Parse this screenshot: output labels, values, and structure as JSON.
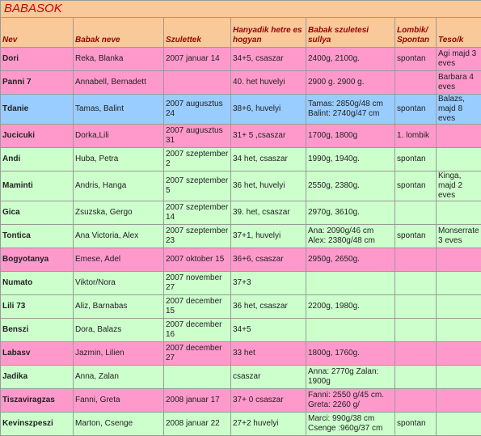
{
  "title": "BABASOK",
  "colors": {
    "header_bg": "#f9c99a",
    "pink": "#ff99cc",
    "green": "#ccffcc",
    "blue": "#99ccff",
    "title_red": "#cc0000",
    "header_text": "#990000"
  },
  "headers": {
    "nev": "Nev",
    "babak_neve": "Babak neve",
    "szulettek": "Szulettek",
    "hanyadik": "Hanyadik hetre es hogyan",
    "suly": "Babak szuletesi sullya",
    "lombik": "Lombik/ Spontan",
    "teso": "Teso/k"
  },
  "rows": [
    {
      "color": "pink",
      "nev": "Dori",
      "babak": "Reka, Blanka",
      "szulettek": "2007 januar 14",
      "het": "34+5, csaszar",
      "suly": "2400g, 2100g.",
      "lombik": "spontan",
      "teso": "Agi majd 3 eves"
    },
    {
      "color": "pink",
      "nev": "Panni 7",
      "babak": "Annabell, Bernadett",
      "szulettek": "",
      "het": "40. het huvelyi",
      "suly": "2900 g. 2900 g.",
      "lombik": "",
      "teso": "Barbara 4 eves"
    },
    {
      "color": "blue",
      "nev": "Tdanie",
      "babak": "Tamas, Balint",
      "szulettek": "2007 augusztus 24",
      "het": "38+6, huvelyi",
      "suly": "Tamas: 2850g/48 cm Balint: 2740g/47 cm",
      "lombik": "spontan",
      "teso": "Balazs, majd 8 eves"
    },
    {
      "color": "pink",
      "nev": "Jucicuki",
      "babak": "Dorka,Lili",
      "szulettek": "2007 augusztus 31",
      "het": "31+ 5 ,csaszar",
      "suly": "1700g, 1800g",
      "lombik": "1. lombik",
      "teso": ""
    },
    {
      "color": "green",
      "nev": "Andi",
      "babak": "Huba, Petra",
      "szulettek": "2007 szeptember 2",
      "het": "34 het, csaszar",
      "suly": "1990g, 1940g.",
      "lombik": "spontan",
      "teso": ""
    },
    {
      "color": "green",
      "nev": "Maminti",
      "babak": "Andris, Hanga",
      "szulettek": "2007 szeptember 5",
      "het": "36 het, huvelyi",
      "suly": "2550g, 2380g.",
      "lombik": "spontan",
      "teso": "Kinga, majd 2 eves"
    },
    {
      "color": "green",
      "nev": "Gica",
      "babak": "Zsuzska, Gergo",
      "szulettek": "2007 szeptember 14",
      "het": "39. het, csaszar",
      "suly": "2970g, 3610g.",
      "lombik": "",
      "teso": ""
    },
    {
      "color": "green",
      "nev": "Tontica",
      "babak": "Ana Victoria, Alex",
      "szulettek": "2007 szeptember 23",
      "het": "37+1, huvelyi",
      "suly": "Ana: 2090g/46 cm Alex: 2380g/48 cm",
      "lombik": "spontan",
      "teso": "Monserrate 3 eves"
    },
    {
      "color": "pink",
      "nev": "Bogyotanya",
      "babak": "Emese, Adel",
      "szulettek": "2007 oktober 15",
      "het": "36+6, csaszar",
      "suly": "2950g, 2650g.",
      "lombik": "",
      "teso": ""
    },
    {
      "color": "green",
      "nev": "Numato",
      "babak": "Viktor/Nora",
      "szulettek": "2007 november 27",
      "het": "37+3",
      "suly": "",
      "lombik": "",
      "teso": ""
    },
    {
      "color": "green",
      "nev": "Lili 73",
      "babak": "Aliz, Barnabas",
      "szulettek": "2007 december 15",
      "het": "36 het, csaszar",
      "suly": "2200g, 1980g.",
      "lombik": "",
      "teso": ""
    },
    {
      "color": "green",
      "nev": "Benszi",
      "babak": "Dora, Balazs",
      "szulettek": "2007 december 16",
      "het": "34+5",
      "suly": "",
      "lombik": "",
      "teso": ""
    },
    {
      "color": "pink",
      "nev": "Labasv",
      "babak": "Jazmin, Lilien",
      "szulettek": "2007 december 27",
      "het": "33 het",
      "suly": "1800g, 1760g.",
      "lombik": "",
      "teso": ""
    },
    {
      "color": "green",
      "nev": "Jadika",
      "babak": "Anna, Zalan",
      "szulettek": "",
      "het": "csaszar",
      "suly": "Anna: 2770g Zalan: 1900g",
      "lombik": "",
      "teso": ""
    },
    {
      "color": "pink",
      "nev": "Tiszaviragzas",
      "babak": "Fanni, Greta",
      "szulettek": "2008 januar 17",
      "het": "37+ 0 csaszar",
      "suly": "Fanni: 2550 g/45 cm. Greta: 2260 g/",
      "lombik": "",
      "teso": ""
    },
    {
      "color": "green",
      "nev": "Kevinszpeszi",
      "babak": "Marton, Csenge",
      "szulettek": "2008 januar 22",
      "het": "27+2 huvelyi",
      "suly": "Marci: 990g/38 cm Csenge :960g/37 cm",
      "lombik": "spontan",
      "teso": ""
    }
  ]
}
